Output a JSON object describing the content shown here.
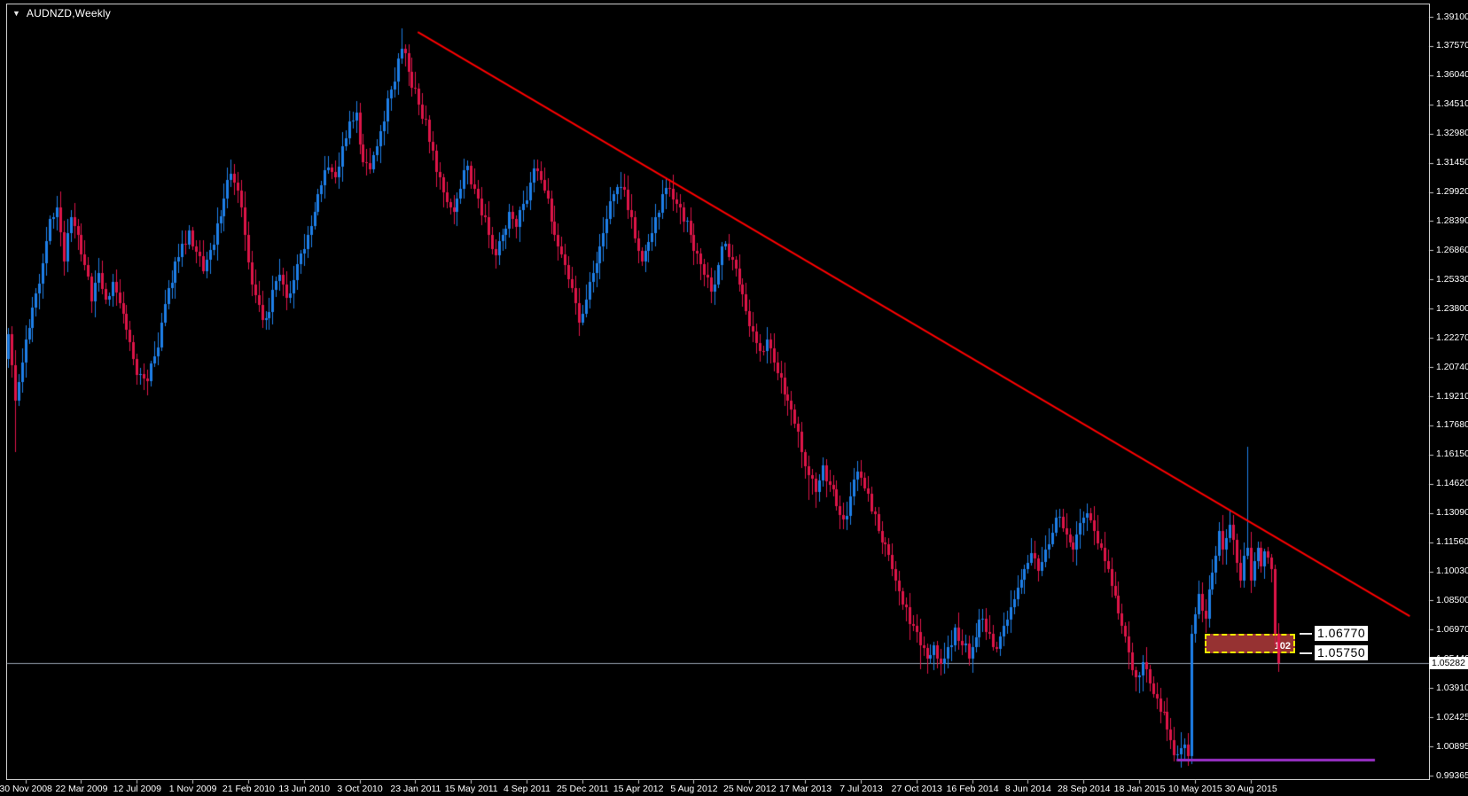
{
  "window": {
    "title": "AUDNZD,Weekly"
  },
  "colors": {
    "background": "#000000",
    "frame": "#cfcfcf",
    "bull": "#1e7fe8",
    "bear": "#de1548",
    "trendline": "#ff0000",
    "support_line": "#9b30c8",
    "zone_fill": "#963232",
    "zone_border": "#f2f200",
    "current_price_line": "#96a0ae",
    "axis_text": "#ffffff"
  },
  "chart_data": {
    "type": "candlestick",
    "symbol": "AUDNZD",
    "timeframe": "Weekly",
    "title": "AUDNZD,Weekly",
    "grid": "off",
    "price_axis_ticks": [
      "1.39100",
      "1.37570",
      "1.36040",
      "1.34510",
      "1.32980",
      "1.31450",
      "1.29920",
      "1.28390",
      "1.26860",
      "1.25330",
      "1.23800",
      "1.22270",
      "1.20740",
      "1.19210",
      "1.17680",
      "1.16150",
      "1.14620",
      "1.13090",
      "1.11560",
      "1.10030",
      "1.08500",
      "1.06970",
      "1.05440",
      "1.03910",
      "1.02425",
      "1.00895",
      "0.99365"
    ],
    "price_range": [
      0.99365,
      1.391
    ],
    "time_axis_ticks": [
      "30 Nov 2008",
      "22 Mar 2009",
      "12 Jul 2009",
      "1 Nov 2009",
      "21 Feb 2010",
      "13 Jun 2010",
      "3 Oct 2010",
      "23 Jan 2011",
      "15 May 2011",
      "4 Sep 2011",
      "25 Dec 2011",
      "15 Apr 2012",
      "5 Aug 2012",
      "25 Nov 2012",
      "17 Mar 2013",
      "7 Jul 2013",
      "27 Oct 2013",
      "16 Feb 2014",
      "8 Jun 2014",
      "28 Sep 2014",
      "18 Jan 2015",
      "10 May 2015",
      "30 Aug 2015"
    ],
    "first_tick_week": 5,
    "weeks_per_tick": 16,
    "weeks_total": 366,
    "current_price": "1.05282",
    "open_first": 1.212,
    "close_anchors": [
      [
        0,
        1.225
      ],
      [
        2,
        1.19
      ],
      [
        4,
        1.21
      ],
      [
        6,
        1.228
      ],
      [
        8,
        1.246
      ],
      [
        10,
        1.262
      ],
      [
        12,
        1.285
      ],
      [
        14,
        1.291
      ],
      [
        16,
        1.263
      ],
      [
        18,
        1.286
      ],
      [
        20,
        1.277
      ],
      [
        22,
        1.261
      ],
      [
        24,
        1.242
      ],
      [
        26,
        1.257
      ],
      [
        28,
        1.243
      ],
      [
        30,
        1.252
      ],
      [
        32,
        1.241
      ],
      [
        34,
        1.227
      ],
      [
        36,
        1.212
      ],
      [
        38,
        1.204
      ],
      [
        40,
        1.2
      ],
      [
        42,
        1.213
      ],
      [
        44,
        1.231
      ],
      [
        46,
        1.249
      ],
      [
        48,
        1.263
      ],
      [
        50,
        1.272
      ],
      [
        52,
        1.279
      ],
      [
        54,
        1.268
      ],
      [
        56,
        1.258
      ],
      [
        58,
        1.269
      ],
      [
        60,
        1.283
      ],
      [
        62,
        1.296
      ],
      [
        64,
        1.309
      ],
      [
        66,
        1.3
      ],
      [
        68,
        1.277
      ],
      [
        70,
        1.251
      ],
      [
        72,
        1.24
      ],
      [
        74,
        1.233
      ],
      [
        76,
        1.248
      ],
      [
        78,
        1.256
      ],
      [
        80,
        1.244
      ],
      [
        82,
        1.253
      ],
      [
        84,
        1.267
      ],
      [
        86,
        1.277
      ],
      [
        88,
        1.289
      ],
      [
        90,
        1.303
      ],
      [
        92,
        1.312
      ],
      [
        94,
        1.307
      ],
      [
        96,
        1.323
      ],
      [
        98,
        1.336
      ],
      [
        100,
        1.341
      ],
      [
        102,
        1.315
      ],
      [
        104,
        1.311
      ],
      [
        106,
        1.323
      ],
      [
        108,
        1.336
      ],
      [
        110,
        1.353
      ],
      [
        112,
        1.369
      ],
      [
        114,
        1.372
      ],
      [
        116,
        1.354
      ],
      [
        118,
        1.345
      ],
      [
        120,
        1.337
      ],
      [
        122,
        1.321
      ],
      [
        124,
        1.307
      ],
      [
        126,
        1.294
      ],
      [
        128,
        1.289
      ],
      [
        130,
        1.301
      ],
      [
        132,
        1.313
      ],
      [
        134,
        1.301
      ],
      [
        136,
        1.287
      ],
      [
        138,
        1.277
      ],
      [
        140,
        1.266
      ],
      [
        142,
        1.277
      ],
      [
        144,
        1.289
      ],
      [
        146,
        1.281
      ],
      [
        148,
        1.293
      ],
      [
        150,
        1.304
      ],
      [
        152,
        1.31
      ],
      [
        154,
        1.3
      ],
      [
        156,
        1.284
      ],
      [
        158,
        1.271
      ],
      [
        160,
        1.261
      ],
      [
        162,
        1.249
      ],
      [
        164,
        1.231
      ],
      [
        166,
        1.243
      ],
      [
        168,
        1.257
      ],
      [
        170,
        1.271
      ],
      [
        172,
        1.285
      ],
      [
        174,
        1.298
      ],
      [
        176,
        1.302
      ],
      [
        178,
        1.29
      ],
      [
        180,
        1.275
      ],
      [
        182,
        1.263
      ],
      [
        184,
        1.273
      ],
      [
        186,
        1.286
      ],
      [
        188,
        1.298
      ],
      [
        190,
        1.301
      ],
      [
        192,
        1.293
      ],
      [
        194,
        1.284
      ],
      [
        196,
        1.277
      ],
      [
        198,
        1.267
      ],
      [
        200,
        1.256
      ],
      [
        202,
        1.247
      ],
      [
        204,
        1.261
      ],
      [
        206,
        1.272
      ],
      [
        208,
        1.264
      ],
      [
        210,
        1.251
      ],
      [
        212,
        1.237
      ],
      [
        214,
        1.226
      ],
      [
        216,
        1.216
      ],
      [
        218,
        1.222
      ],
      [
        220,
        1.21
      ],
      [
        222,
        1.202
      ],
      [
        224,
        1.19
      ],
      [
        226,
        1.178
      ],
      [
        228,
        1.163
      ],
      [
        230,
        1.151
      ],
      [
        232,
        1.142
      ],
      [
        234,
        1.156
      ],
      [
        236,
        1.146
      ],
      [
        238,
        1.135
      ],
      [
        240,
        1.128
      ],
      [
        242,
        1.14
      ],
      [
        244,
        1.153
      ],
      [
        246,
        1.144
      ],
      [
        248,
        1.132
      ],
      [
        250,
        1.122
      ],
      [
        252,
        1.115
      ],
      [
        254,
        1.102
      ],
      [
        256,
        1.09
      ],
      [
        258,
        1.082
      ],
      [
        260,
        1.072
      ],
      [
        262,
        1.062
      ],
      [
        264,
        1.055
      ],
      [
        266,
        1.062
      ],
      [
        268,
        1.052
      ],
      [
        270,
        1.061
      ],
      [
        272,
        1.071
      ],
      [
        274,
        1.062
      ],
      [
        276,
        1.055
      ],
      [
        278,
        1.066
      ],
      [
        280,
        1.076
      ],
      [
        282,
        1.068
      ],
      [
        284,
        1.06
      ],
      [
        286,
        1.072
      ],
      [
        288,
        1.082
      ],
      [
        290,
        1.092
      ],
      [
        292,
        1.102
      ],
      [
        294,
        1.11
      ],
      [
        296,
        1.101
      ],
      [
        298,
        1.112
      ],
      [
        300,
        1.121
      ],
      [
        302,
        1.129
      ],
      [
        304,
        1.12
      ],
      [
        306,
        1.112
      ],
      [
        308,
        1.126
      ],
      [
        310,
        1.131
      ],
      [
        312,
        1.122
      ],
      [
        314,
        1.113
      ],
      [
        316,
        1.102
      ],
      [
        318,
        1.088
      ],
      [
        320,
        1.072
      ],
      [
        322,
        1.058
      ],
      [
        324,
        1.045
      ],
      [
        326,
        1.053
      ],
      [
        328,
        1.042
      ],
      [
        330,
        1.034
      ],
      [
        332,
        1.027
      ],
      [
        334,
        1.012
      ],
      [
        336,
        1.005
      ],
      [
        338,
        1.01
      ],
      [
        339,
        1.004
      ],
      [
        340,
        1.068
      ],
      [
        341,
        1.078
      ],
      [
        342,
        1.089
      ],
      [
        343,
        1.08
      ],
      [
        344,
        1.076
      ],
      [
        345,
        1.091
      ],
      [
        346,
        1.1
      ],
      [
        347,
        1.109
      ],
      [
        348,
        1.122
      ],
      [
        349,
        1.112
      ],
      [
        350,
        1.118
      ],
      [
        351,
        1.125
      ],
      [
        352,
        1.117
      ],
      [
        353,
        1.105
      ],
      [
        354,
        1.096
      ],
      [
        355,
        1.109
      ],
      [
        356,
        1.113
      ],
      [
        357,
        1.096
      ],
      [
        358,
        1.106
      ],
      [
        359,
        1.113
      ],
      [
        360,
        1.103
      ],
      [
        361,
        1.111
      ],
      [
        362,
        1.108
      ],
      [
        363,
        1.102
      ],
      [
        364,
        1.068
      ],
      [
        365,
        1.05282
      ]
    ],
    "wick_events": [
      {
        "week": 2,
        "low": 1.163
      },
      {
        "week": 40,
        "low": 1.193
      },
      {
        "week": 100,
        "high": 1.347
      },
      {
        "week": 113,
        "high": 1.385
      },
      {
        "week": 230,
        "low": 1.138
      },
      {
        "week": 262,
        "low": 1.0495
      },
      {
        "week": 337,
        "low": 0.998
      },
      {
        "week": 339,
        "low": 0.999
      },
      {
        "week": 356,
        "high": 1.166
      },
      {
        "week": 364,
        "high": 1.103
      },
      {
        "week": 365,
        "low": 1.048
      }
    ],
    "annotations": {
      "trendline": {
        "type": "line",
        "from": {
          "week": 118,
          "price": 1.3831
        },
        "to": {
          "week": 403,
          "price": 1.0772
        },
        "width": 2
      },
      "support_line": {
        "type": "segment",
        "price": 1.0018,
        "from_week": 336,
        "to_week": 393,
        "width": 3
      },
      "zone": {
        "type": "rectangle",
        "from_week": 344,
        "to_week": 370,
        "top_price": 1.0677,
        "bottom_price": 1.0575,
        "label": "102",
        "top_price_label": "1.06770",
        "bottom_price_label": "1.05750"
      },
      "current_price_line": {
        "price": 1.05282,
        "label": "1.05282"
      }
    }
  }
}
